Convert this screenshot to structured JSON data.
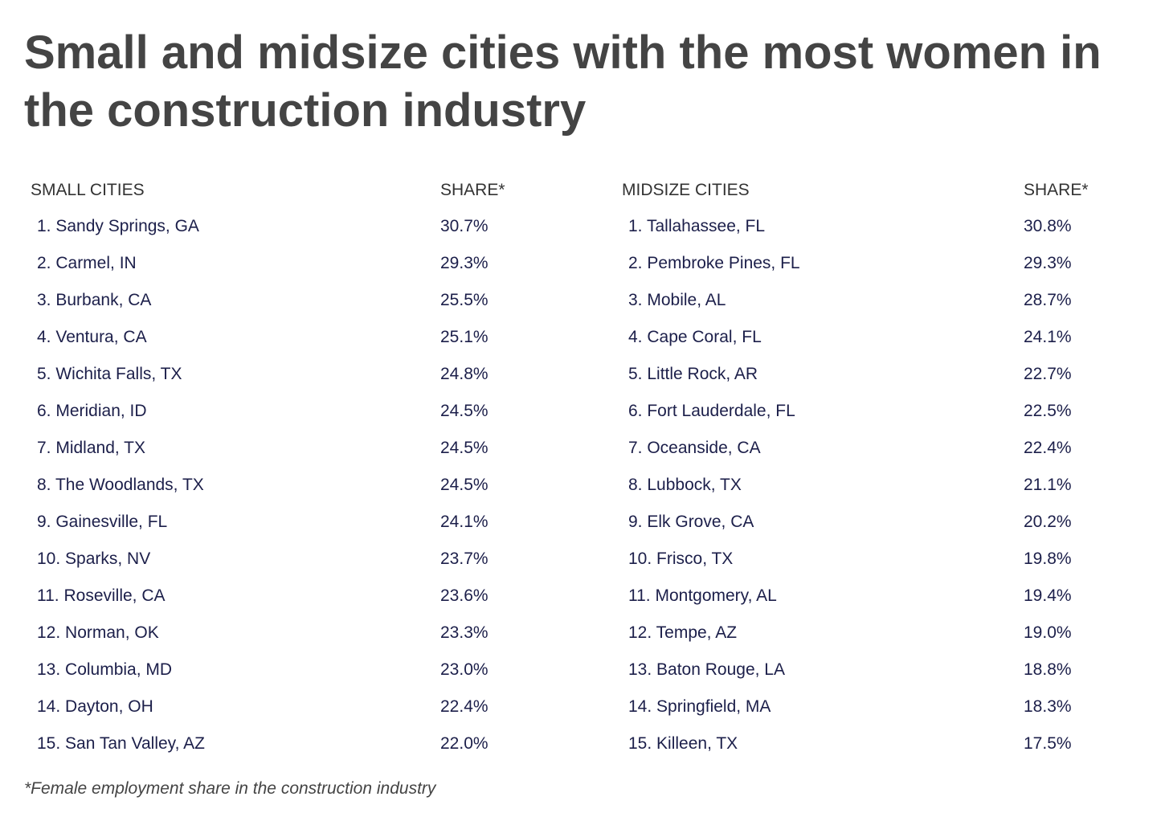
{
  "title": "Small and midsize cities with the most women in the construction industry",
  "footnote": "*Female employment share in the construction industry",
  "chart_data": [
    {
      "type": "table",
      "columns": [
        "SMALL CITIES",
        "SHARE*"
      ],
      "rows": [
        [
          "1. Sandy Springs, GA",
          "30.7%"
        ],
        [
          "2. Carmel, IN",
          "29.3%"
        ],
        [
          "3. Burbank, CA",
          "25.5%"
        ],
        [
          "4. Ventura, CA",
          "25.1%"
        ],
        [
          "5. Wichita Falls, TX",
          "24.8%"
        ],
        [
          "6. Meridian, ID",
          "24.5%"
        ],
        [
          "7. Midland, TX",
          "24.5%"
        ],
        [
          "8. The Woodlands, TX",
          "24.5%"
        ],
        [
          "9. Gainesville, FL",
          "24.1%"
        ],
        [
          "10. Sparks, NV",
          "23.7%"
        ],
        [
          "11. Roseville, CA",
          "23.6%"
        ],
        [
          "12. Norman, OK",
          "23.3%"
        ],
        [
          "13. Columbia, MD",
          "23.0%"
        ],
        [
          "14. Dayton, OH",
          "22.4%"
        ],
        [
          "15. San Tan Valley, AZ",
          "22.0%"
        ]
      ]
    },
    {
      "type": "table",
      "columns": [
        "MIDSIZE CITIES",
        "SHARE*"
      ],
      "rows": [
        [
          "1. Tallahassee, FL",
          "30.8%"
        ],
        [
          "2. Pembroke Pines, FL",
          "29.3%"
        ],
        [
          "3. Mobile, AL",
          "28.7%"
        ],
        [
          "4. Cape Coral, FL",
          "24.1%"
        ],
        [
          "5. Little Rock, AR",
          "22.7%"
        ],
        [
          "6. Fort Lauderdale, FL",
          "22.5%"
        ],
        [
          "7. Oceanside, CA",
          "22.4%"
        ],
        [
          "8. Lubbock, TX",
          "21.1%"
        ],
        [
          "9. Elk Grove, CA",
          "20.2%"
        ],
        [
          "10. Frisco, TX",
          "19.8%"
        ],
        [
          "11. Montgomery, AL",
          "19.4%"
        ],
        [
          "12. Tempe, AZ",
          "19.0%"
        ],
        [
          "13. Baton Rouge, LA",
          "18.8%"
        ],
        [
          "14. Springfield, MA",
          "18.3%"
        ],
        [
          "15. Killeen, TX",
          "17.5%"
        ]
      ]
    }
  ]
}
